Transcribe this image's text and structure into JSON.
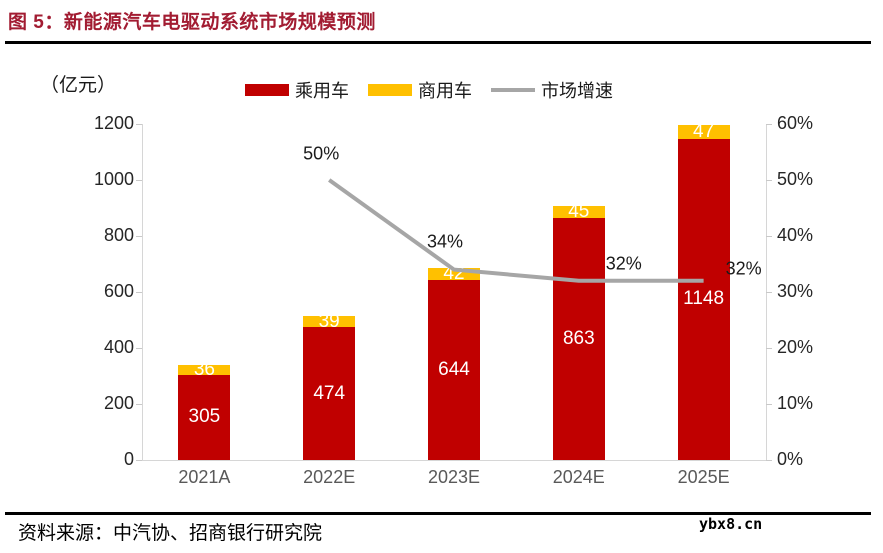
{
  "header": {
    "title": "图 5：新能源汽车电驱动系统市场规模预测"
  },
  "chart_data": {
    "type": "bar",
    "title": "新能源汽车电驱动系统市场规模预测",
    "unit_label": "（亿元）",
    "categories": [
      "2021A",
      "2022E",
      "2023E",
      "2024E",
      "2025E"
    ],
    "series": [
      {
        "name": "乘用车",
        "kind": "bar",
        "color": "#C00000",
        "values": [
          305,
          474,
          644,
          863,
          1148
        ]
      },
      {
        "name": "商用车",
        "kind": "bar",
        "color": "#FFC000",
        "values": [
          36,
          39,
          42,
          45,
          47
        ]
      },
      {
        "name": "市场增速",
        "kind": "line",
        "color": "#A6A6A6",
        "axis": "right",
        "values": [
          null,
          50,
          34,
          32,
          32
        ],
        "point_labels": [
          "",
          "50%",
          "34%",
          "32%",
          "32%"
        ]
      }
    ],
    "y_left": {
      "ticks": [
        "0",
        "200",
        "400",
        "600",
        "800",
        "1000",
        "1200"
      ],
      "min": 0,
      "max": 1200
    },
    "y_right": {
      "ticks": [
        "0%",
        "10%",
        "20%",
        "30%",
        "40%",
        "50%",
        "60%"
      ],
      "min": 0,
      "max": 60
    },
    "grid": false,
    "legend_position": "top",
    "bar_stacked": true
  },
  "footer": {
    "source": "资料来源：中汽协、招商银行研究院",
    "watermark": "ybx8.cn"
  },
  "colors": {
    "title_red": "#A21C32",
    "bar_red": "#C00000",
    "bar_yellow": "#FFC000",
    "line_gray": "#A6A6A6"
  }
}
